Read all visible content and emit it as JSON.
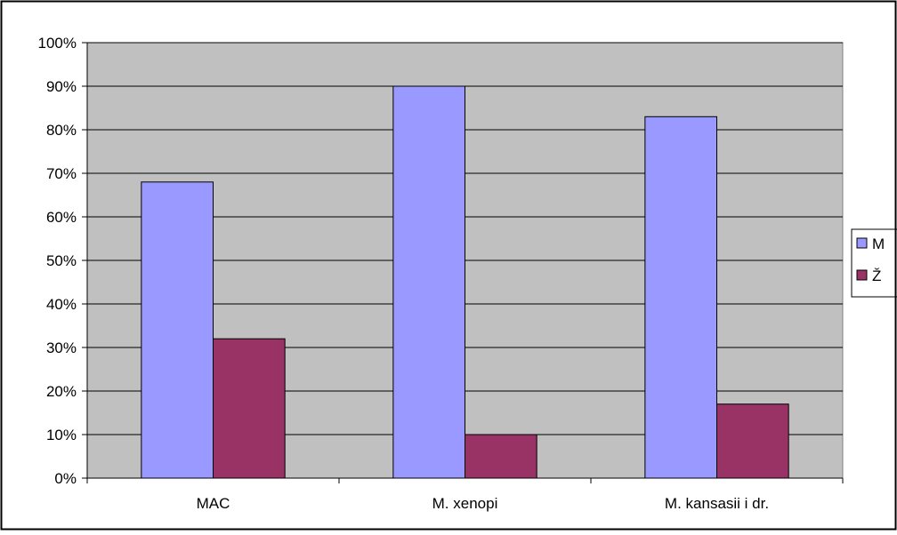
{
  "chart_data": {
    "type": "bar",
    "categories": [
      "MAC",
      "M. xenopi",
      "M. kansasii i dr."
    ],
    "series": [
      {
        "name": "M",
        "color": "#9999ff",
        "values": [
          68,
          90,
          83
        ]
      },
      {
        "name": "Ž",
        "color": "#993366",
        "values": [
          32,
          10,
          17
        ]
      }
    ],
    "ylim": [
      0,
      100
    ],
    "y_ticks": [
      "0%",
      "10%",
      "20%",
      "30%",
      "40%",
      "50%",
      "60%",
      "70%",
      "80%",
      "90%",
      "100%"
    ],
    "y_unit": "%",
    "grid": true,
    "legend_position": "right",
    "plot_background": "#c0c0c0"
  }
}
